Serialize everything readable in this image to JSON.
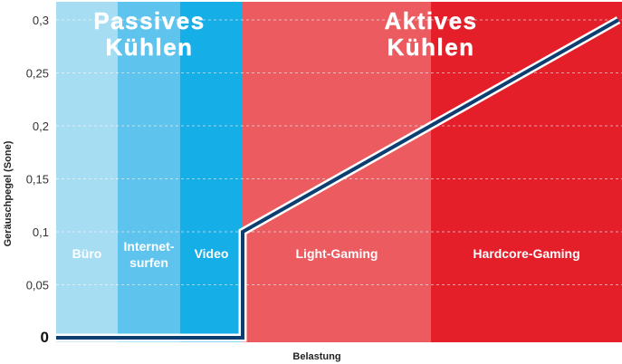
{
  "chart_data": {
    "type": "line",
    "title": "",
    "xlabel": "Belastung",
    "ylabel": "Geräuschpegel (Sone)",
    "ylim": [
      0,
      0.3
    ],
    "yticks": [
      "0",
      "0,05",
      "0,1",
      "0,15",
      "0,2",
      "0,25",
      "0,3"
    ],
    "grid": true,
    "x_zones": [
      {
        "label": "Büro",
        "color": "#a6ddf3",
        "from": 0,
        "to": 1
      },
      {
        "label": "Internet-\nsurfen",
        "color": "#5ec4ee",
        "from": 1,
        "to": 2
      },
      {
        "label": "Video",
        "color": "#16aee6",
        "from": 2,
        "to": 3
      },
      {
        "label": "Light-Gaming",
        "color": "#ec5b60",
        "from": 3,
        "to": 6
      },
      {
        "label": "Hardcore-Gaming",
        "color": "#e51f29",
        "from": 6,
        "to": 9
      }
    ],
    "mode_labels": [
      {
        "text": "Passives\nKühlen",
        "from": 0,
        "to": 3
      },
      {
        "text": "Aktives\nKühlen",
        "from": 3,
        "to": 9
      }
    ],
    "series": [
      {
        "values": [
          [
            0,
            0
          ],
          [
            3,
            0
          ],
          [
            3,
            0.1
          ],
          [
            9,
            0.3
          ]
        ],
        "color": "#0c3e72"
      }
    ]
  }
}
